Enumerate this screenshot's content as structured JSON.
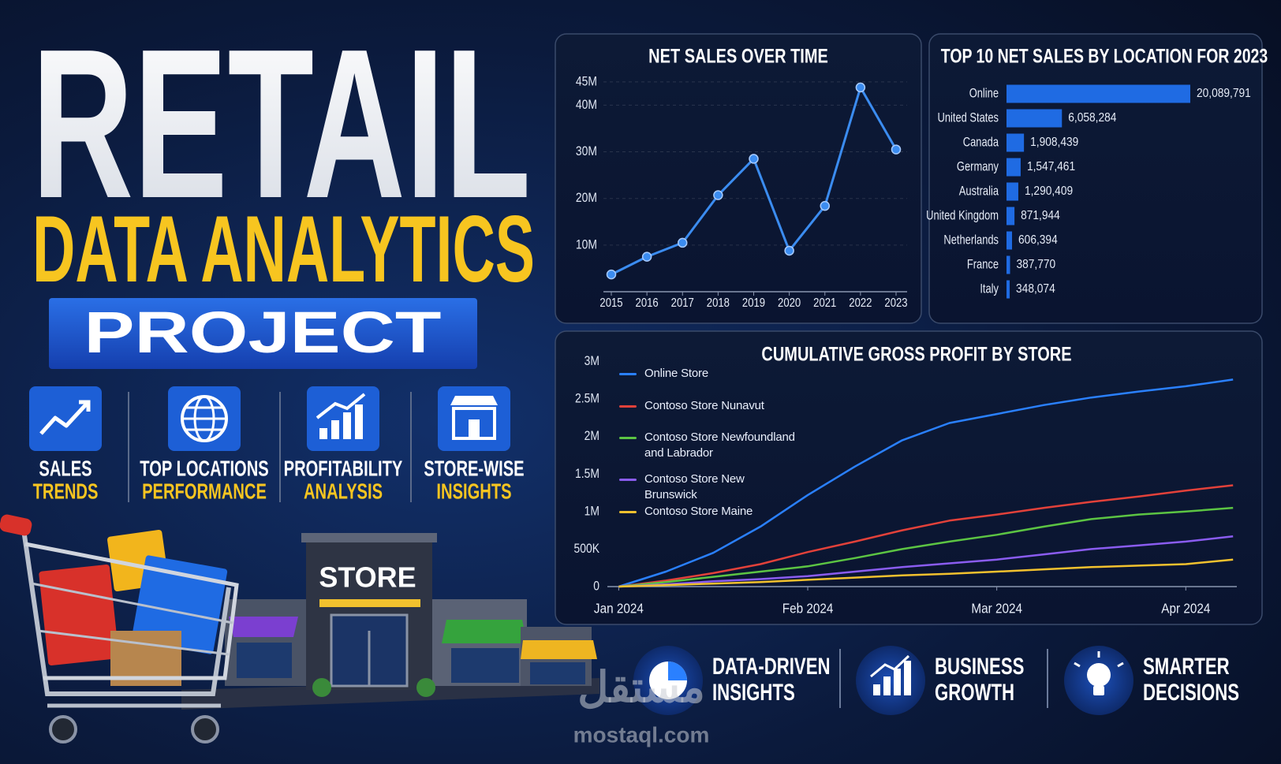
{
  "header": {
    "title": "RETAIL",
    "subtitle": "DATA ANALYTICS",
    "badge": "PROJECT"
  },
  "features": [
    {
      "line1": "SALES",
      "line2": "TRENDS"
    },
    {
      "line1": "TOP LOCATIONS",
      "line2": "PERFORMANCE"
    },
    {
      "line1": "PROFITABILITY",
      "line2": "ANALYSIS"
    },
    {
      "line1": "STORE-WISE",
      "line2": "INSIGHTS"
    }
  ],
  "illustration": {
    "store_sign": "STORE"
  },
  "benefits": [
    {
      "line1": "DATA-DRIVEN",
      "line2": "INSIGHTS"
    },
    {
      "line1": "BUSINESS",
      "line2": "GROWTH"
    },
    {
      "line1": "SMARTER",
      "line2": "DECISIONS"
    }
  ],
  "watermark": {
    "logo": "مستقل",
    "site": "mostaql.com"
  },
  "chart_data": [
    {
      "type": "line",
      "title": "NET SALES OVER TIME",
      "categories": [
        "2015",
        "2016",
        "2017",
        "2018",
        "2019",
        "2020",
        "2021",
        "2022",
        "2023"
      ],
      "values": [
        3.7,
        7.5,
        10.5,
        20.7,
        28.5,
        8.8,
        18.4,
        43.8,
        30.5
      ],
      "color": "#3b8cf0",
      "ylim": [
        0,
        47
      ],
      "yticks": [
        {
          "value": 10,
          "label": "10M"
        },
        {
          "value": 20,
          "label": "20M"
        },
        {
          "value": 30,
          "label": "30M"
        },
        {
          "value": 40,
          "label": "40M"
        },
        {
          "value": 45,
          "label": "45M"
        }
      ],
      "grid": true
    },
    {
      "type": "bar",
      "orientation": "horizontal",
      "title": "TOP 10 NET SALES BY LOCATION FOR 2023",
      "categories": [
        "Online",
        "United States",
        "Canada",
        "Germany",
        "Australia",
        "United Kingdom",
        "Netherlands",
        "France",
        "Italy"
      ],
      "values": [
        20089791,
        6058284,
        1908439,
        1547461,
        1290409,
        871944,
        606394,
        387770,
        348074
      ],
      "value_labels": [
        "20,089,791",
        "6,058,284",
        "1,908,439",
        "1,547,461",
        "1,290,409",
        "871,944",
        "606,394",
        "387,770",
        "348,074"
      ],
      "color": "#1f6be3"
    },
    {
      "type": "line",
      "title": "CUMULATIVE GROSS PROFIT BY STORE",
      "x": [
        0,
        0.25,
        0.5,
        0.75,
        1,
        1.25,
        1.5,
        1.75,
        2,
        2.25,
        2.5,
        2.75,
        3,
        3.25
      ],
      "xlim": [
        -0.06,
        3.27
      ],
      "xticks": [
        {
          "value": 0,
          "label": "Jan 2024"
        },
        {
          "value": 1,
          "label": "Feb 2024"
        },
        {
          "value": 2,
          "label": "Mar 2024"
        },
        {
          "value": 3,
          "label": "Apr 2024"
        }
      ],
      "ylim": [
        0,
        3.1
      ],
      "yticks": [
        0,
        {
          "value": 0.5,
          "label": "500K"
        },
        {
          "value": 1,
          "label": "1M"
        },
        {
          "value": 1.5,
          "label": "1.5M"
        },
        {
          "value": 2,
          "label": "2M"
        },
        {
          "value": 2.5,
          "label": "2.5M"
        },
        {
          "value": 3,
          "label": "3M"
        }
      ],
      "grid": false,
      "series": [
        {
          "name": "Online Store",
          "color": "#2a80ff",
          "values": [
            0,
            0.2,
            0.45,
            0.8,
            1.22,
            1.6,
            1.95,
            2.18,
            2.3,
            2.42,
            2.52,
            2.6,
            2.67,
            2.76
          ]
        },
        {
          "name": "Contoso Store Nunavut",
          "color": "#e2413a",
          "values": [
            0,
            0.08,
            0.18,
            0.3,
            0.46,
            0.6,
            0.75,
            0.88,
            0.96,
            1.05,
            1.13,
            1.2,
            1.28,
            1.35
          ]
        },
        {
          "name": "Contoso Store Newfoundland and Labrador",
          "color": "#5cc443",
          "values": [
            0,
            0.06,
            0.13,
            0.2,
            0.27,
            0.38,
            0.5,
            0.6,
            0.69,
            0.8,
            0.9,
            0.96,
            1.0,
            1.05
          ]
        },
        {
          "name": "Contoso Store New Brunswick",
          "color": "#8a5cf0",
          "values": [
            0,
            0.03,
            0.07,
            0.1,
            0.14,
            0.2,
            0.26,
            0.31,
            0.36,
            0.43,
            0.5,
            0.55,
            0.6,
            0.67
          ]
        },
        {
          "name": "Contoso Store Maine",
          "color": "#f2c12e",
          "values": [
            0,
            0.02,
            0.04,
            0.06,
            0.09,
            0.12,
            0.15,
            0.17,
            0.2,
            0.23,
            0.26,
            0.28,
            0.3,
            0.36
          ]
        }
      ]
    }
  ]
}
